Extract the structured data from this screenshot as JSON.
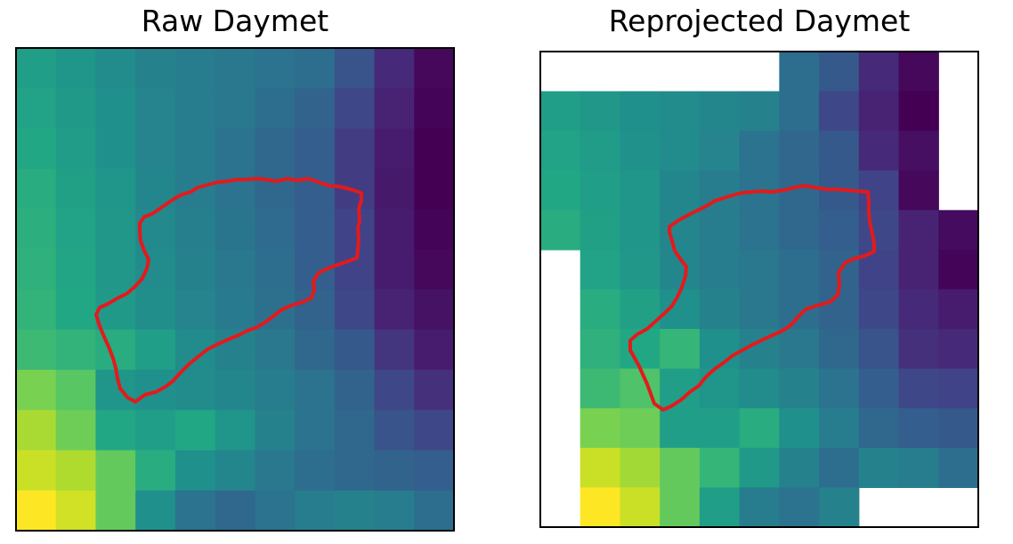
{
  "chart_data": [
    {
      "type": "heatmap",
      "title": "Raw Daymet",
      "colormap": "viridis",
      "value_range": [
        0,
        1
      ],
      "grid": false,
      "axes_ticks": false,
      "outline_color": "#e31a1c",
      "rows": 12,
      "cols": 11,
      "cells": [
        [
          0.56,
          0.52,
          0.48,
          0.44,
          0.42,
          0.4,
          0.38,
          0.36,
          0.26,
          0.12,
          0.02
        ],
        [
          0.58,
          0.54,
          0.5,
          0.45,
          0.42,
          0.4,
          0.36,
          0.32,
          0.22,
          0.1,
          0.01
        ],
        [
          0.6,
          0.55,
          0.5,
          0.45,
          0.42,
          0.38,
          0.34,
          0.3,
          0.18,
          0.08,
          0.0
        ],
        [
          0.62,
          0.57,
          0.52,
          0.46,
          0.42,
          0.38,
          0.34,
          0.3,
          0.18,
          0.07,
          0.0
        ],
        [
          0.63,
          0.58,
          0.53,
          0.47,
          0.43,
          0.39,
          0.35,
          0.3,
          0.2,
          0.08,
          0.01
        ],
        [
          0.64,
          0.59,
          0.53,
          0.48,
          0.44,
          0.4,
          0.36,
          0.3,
          0.2,
          0.08,
          0.02
        ],
        [
          0.65,
          0.6,
          0.54,
          0.49,
          0.45,
          0.41,
          0.37,
          0.32,
          0.22,
          0.1,
          0.05
        ],
        [
          0.68,
          0.65,
          0.62,
          0.56,
          0.48,
          0.44,
          0.4,
          0.34,
          0.28,
          0.16,
          0.08
        ],
        [
          0.8,
          0.74,
          0.52,
          0.5,
          0.48,
          0.46,
          0.42,
          0.38,
          0.32,
          0.22,
          0.14
        ],
        [
          0.87,
          0.78,
          0.6,
          0.56,
          0.6,
          0.52,
          0.44,
          0.38,
          0.34,
          0.26,
          0.22
        ],
        [
          0.92,
          0.88,
          0.76,
          0.62,
          0.5,
          0.46,
          0.4,
          0.36,
          0.34,
          0.32,
          0.3
        ],
        [
          1.0,
          0.93,
          0.76,
          0.5,
          0.38,
          0.34,
          0.38,
          0.42,
          0.44,
          0.42,
          0.36
        ]
      ]
    },
    {
      "type": "heatmap",
      "title": "Reprojected Daymet",
      "colormap": "viridis",
      "value_range": [
        0,
        1
      ],
      "grid": false,
      "axes_ticks": false,
      "outline_color": "#e31a1c",
      "rows": 12,
      "cols": 11,
      "cells": [
        [
          null,
          null,
          null,
          null,
          null,
          null,
          0.36,
          0.28,
          0.12,
          0.02,
          null
        ],
        [
          0.56,
          0.53,
          0.5,
          0.48,
          0.46,
          0.44,
          0.36,
          0.22,
          0.1,
          0.0,
          null
        ],
        [
          0.58,
          0.55,
          0.51,
          0.48,
          0.45,
          0.38,
          0.33,
          0.28,
          0.12,
          0.04,
          null
        ],
        [
          0.6,
          0.56,
          0.52,
          0.46,
          0.42,
          0.38,
          0.34,
          0.28,
          0.2,
          0.02,
          null
        ],
        [
          0.62,
          0.57,
          0.52,
          0.46,
          0.42,
          0.38,
          0.34,
          0.3,
          0.22,
          0.1,
          0.03
        ],
        [
          null,
          0.58,
          0.53,
          0.46,
          0.42,
          0.4,
          0.36,
          0.32,
          0.2,
          0.1,
          0.01
        ],
        [
          null,
          0.62,
          0.57,
          0.5,
          0.44,
          0.4,
          0.36,
          0.32,
          0.22,
          0.12,
          0.08
        ],
        [
          null,
          0.64,
          0.6,
          0.66,
          0.5,
          0.44,
          0.4,
          0.34,
          0.26,
          0.14,
          0.12
        ],
        [
          null,
          0.68,
          0.72,
          0.56,
          0.52,
          0.48,
          0.44,
          0.38,
          0.3,
          0.22,
          0.2
        ],
        [
          null,
          0.8,
          0.78,
          0.56,
          0.56,
          0.62,
          0.5,
          0.42,
          0.34,
          0.3,
          0.28
        ],
        [
          null,
          0.92,
          0.86,
          0.76,
          0.66,
          0.54,
          0.44,
          0.36,
          0.44,
          0.42,
          0.36
        ],
        [
          null,
          1.0,
          0.92,
          0.76,
          0.56,
          0.42,
          0.38,
          0.44,
          null,
          null,
          null
        ]
      ]
    }
  ]
}
